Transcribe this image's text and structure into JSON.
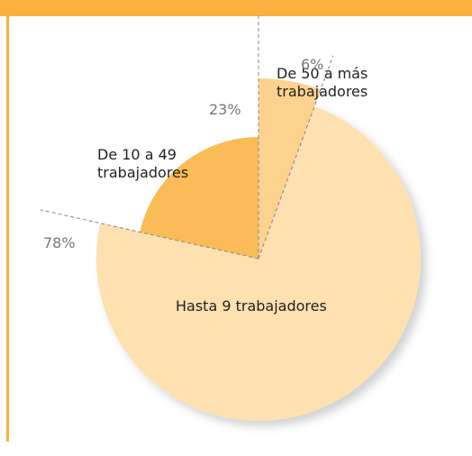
{
  "chart_data": {
    "type": "pie",
    "categories": [
      "De 50 a más trabajadores",
      "Hasta 9 trabajadores",
      "De 10 a 49 trabajadores"
    ],
    "values": [
      6,
      78,
      23
    ],
    "value_labels": [
      "6%",
      "78%",
      "23%"
    ],
    "colors": [
      "#fdd28f",
      "#fee0b1",
      "#fbbb59"
    ]
  }
}
